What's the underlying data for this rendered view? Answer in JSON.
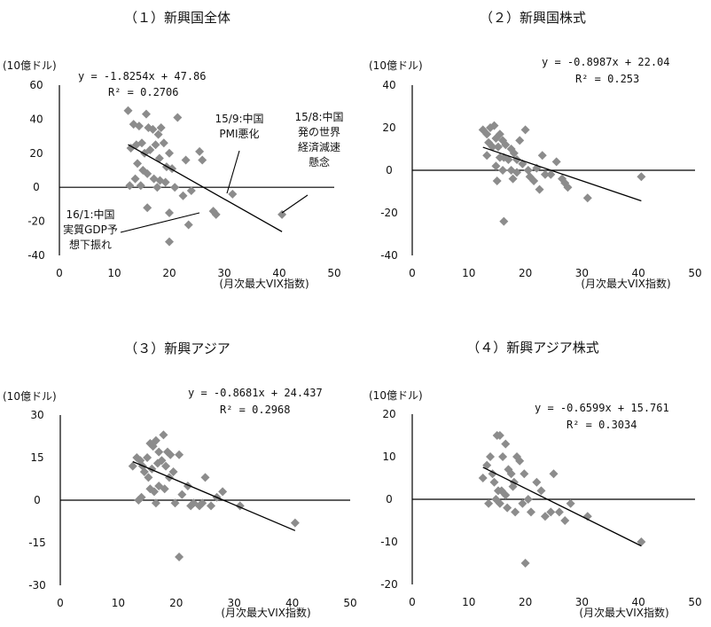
{
  "chart_data": [
    {
      "type": "scatter",
      "title": "（１）新興国全体",
      "unit_label": "(10億ドル)",
      "xlabel": "(月次最大VIX指数)",
      "xlim": [
        0,
        50
      ],
      "ylim": [
        -40,
        60
      ],
      "x_ticks": [
        0,
        10,
        20,
        30,
        40,
        50
      ],
      "y_ticks": [
        -40,
        -20,
        0,
        20,
        40,
        60
      ],
      "trend": {
        "slope": -1.8254,
        "intercept": 47.86,
        "x_range": [
          12.5,
          40.5
        ]
      },
      "equation": "y = -1.8254x + 47.86",
      "r2": "R² = 0.2706",
      "points": [
        [
          12.5,
          45
        ],
        [
          13.5,
          37
        ],
        [
          14.5,
          36
        ],
        [
          15.8,
          43
        ],
        [
          16.2,
          35
        ],
        [
          17.0,
          34
        ],
        [
          18.0,
          31
        ],
        [
          18.5,
          35
        ],
        [
          19.0,
          26
        ],
        [
          20.0,
          20
        ],
        [
          21.5,
          41
        ],
        [
          23.0,
          16
        ],
        [
          25.5,
          21
        ],
        [
          26.0,
          16
        ],
        [
          13.0,
          23
        ],
        [
          14.0,
          25
        ],
        [
          15.0,
          26
        ],
        [
          15.5,
          20
        ],
        [
          16.5,
          22
        ],
        [
          17.5,
          25
        ],
        [
          18.2,
          17
        ],
        [
          19.5,
          12
        ],
        [
          14.2,
          14
        ],
        [
          15.2,
          10
        ],
        [
          16.0,
          8
        ],
        [
          17.2,
          5
        ],
        [
          18.3,
          4
        ],
        [
          19.3,
          3
        ],
        [
          13.8,
          5
        ],
        [
          14.8,
          1
        ],
        [
          17.8,
          0
        ],
        [
          20.5,
          11
        ],
        [
          21.0,
          0
        ],
        [
          22.5,
          -5
        ],
        [
          24.0,
          -2
        ],
        [
          28.0,
          -14
        ],
        [
          28.5,
          -16
        ],
        [
          31.5,
          -4
        ],
        [
          40.5,
          -16
        ],
        [
          16.0,
          -12
        ],
        [
          20.0,
          -15
        ],
        [
          23.5,
          -22
        ],
        [
          20.0,
          -32
        ],
        [
          12.8,
          1
        ]
      ],
      "annotations": [
        {
          "lines": [
            "15/9:中国",
            "PMI悪化"
          ]
        },
        {
          "lines": [
            "15/8:中国",
            "発の世界",
            "経済減速",
            "懸念"
          ]
        },
        {
          "lines": [
            "16/1:中国",
            "実質GDP予",
            "想下振れ"
          ]
        }
      ]
    },
    {
      "type": "scatter",
      "title": "（２）新興国株式",
      "unit_label": "(10億ドル)",
      "xlabel": "(月次最大VIX指数)",
      "xlim": [
        0,
        50
      ],
      "ylim": [
        -40,
        40
      ],
      "x_ticks": [
        0,
        10,
        20,
        30,
        40,
        50
      ],
      "y_ticks": [
        -40,
        -20,
        0,
        20,
        40
      ],
      "trend": {
        "slope": -0.8987,
        "intercept": 22.04,
        "x_range": [
          12.5,
          40.5
        ]
      },
      "equation": "y = -0.8987x + 22.04",
      "r2": "R² = 0.253",
      "points": [
        [
          12.5,
          19
        ],
        [
          13.2,
          17
        ],
        [
          13.8,
          20
        ],
        [
          14.5,
          21
        ],
        [
          14.8,
          15
        ],
        [
          15.5,
          17
        ],
        [
          16.0,
          14
        ],
        [
          13.5,
          13
        ],
        [
          14.2,
          11
        ],
        [
          15.2,
          11
        ],
        [
          16.5,
          12
        ],
        [
          17.5,
          10
        ],
        [
          18.0,
          8
        ],
        [
          19.0,
          14
        ],
        [
          20.0,
          19
        ],
        [
          15.5,
          6
        ],
        [
          16.2,
          6
        ],
        [
          17.0,
          5
        ],
        [
          18.5,
          5
        ],
        [
          19.5,
          3
        ],
        [
          14.8,
          2
        ],
        [
          16.0,
          0
        ],
        [
          17.5,
          0
        ],
        [
          18.5,
          -1
        ],
        [
          20.5,
          0
        ],
        [
          22.0,
          1
        ],
        [
          23.0,
          7
        ],
        [
          24.5,
          -2
        ],
        [
          25.5,
          4
        ],
        [
          26.5,
          -4
        ],
        [
          27.5,
          -8
        ],
        [
          15.0,
          -5
        ],
        [
          22.5,
          -9
        ],
        [
          31.0,
          -13
        ],
        [
          40.5,
          -3
        ],
        [
          16.2,
          -24
        ],
        [
          17.8,
          -4
        ],
        [
          20.8,
          -3
        ],
        [
          21.5,
          -5
        ],
        [
          13.2,
          7
        ],
        [
          27.0,
          -6
        ],
        [
          23.5,
          -2
        ]
      ]
    },
    {
      "type": "scatter",
      "title": "（３）新興アジア",
      "unit_label": "(10億ドル)",
      "xlabel": "(月次最大VIX指数)",
      "xlim": [
        0,
        50
      ],
      "ylim": [
        -30,
        30
      ],
      "x_ticks": [
        0,
        10,
        20,
        30,
        40,
        50
      ],
      "y_ticks": [
        -30,
        -15,
        0,
        15,
        30
      ],
      "trend": {
        "slope": -0.8681,
        "intercept": 24.437,
        "x_range": [
          12.5,
          40.5
        ]
      },
      "equation": "y = -0.8681x + 24.437",
      "r2": "R² = 0.2968",
      "points": [
        [
          12.5,
          12
        ],
        [
          13.2,
          15
        ],
        [
          13.8,
          14
        ],
        [
          14.2,
          12
        ],
        [
          15.0,
          15
        ],
        [
          15.5,
          20
        ],
        [
          16.0,
          19
        ],
        [
          16.5,
          21
        ],
        [
          17.0,
          17
        ],
        [
          17.8,
          23
        ],
        [
          18.5,
          17
        ],
        [
          14.5,
          10
        ],
        [
          15.2,
          8
        ],
        [
          15.8,
          11
        ],
        [
          16.8,
          13
        ],
        [
          17.5,
          14
        ],
        [
          18.2,
          12
        ],
        [
          19.0,
          16
        ],
        [
          14.0,
          1
        ],
        [
          15.5,
          4
        ],
        [
          16.2,
          3
        ],
        [
          17.0,
          5
        ],
        [
          18.0,
          4
        ],
        [
          18.8,
          8
        ],
        [
          19.5,
          10
        ],
        [
          20.5,
          16
        ],
        [
          21.0,
          2
        ],
        [
          22.0,
          5
        ],
        [
          23.0,
          -1
        ],
        [
          24.0,
          -2
        ],
        [
          25.0,
          8
        ],
        [
          26.0,
          -2
        ],
        [
          27.0,
          1
        ],
        [
          28.0,
          3
        ],
        [
          31.0,
          -2
        ],
        [
          40.5,
          -8
        ],
        [
          20.5,
          -20
        ],
        [
          16.5,
          -1
        ],
        [
          19.8,
          -1
        ],
        [
          22.5,
          -2
        ],
        [
          24.5,
          -1
        ],
        [
          13.5,
          0
        ]
      ]
    },
    {
      "type": "scatter",
      "title": "（４）新興アジア株式",
      "unit_label": "(10億ドル)",
      "xlabel": "(月次最大VIX指数)",
      "xlim": [
        0,
        50
      ],
      "ylim": [
        -20,
        20
      ],
      "x_ticks": [
        0,
        10,
        20,
        30,
        40,
        50
      ],
      "y_ticks": [
        -20,
        -10,
        0,
        10,
        20
      ],
      "trend": {
        "slope": -0.6599,
        "intercept": 15.761,
        "x_range": [
          12.5,
          40.5
        ]
      },
      "equation": "y = -0.6599x + 15.761",
      "r2": "R² = 0.3034",
      "points": [
        [
          12.5,
          5
        ],
        [
          13.2,
          8
        ],
        [
          13.8,
          10
        ],
        [
          14.2,
          6
        ],
        [
          15.0,
          15
        ],
        [
          15.5,
          15
        ],
        [
          16.0,
          10
        ],
        [
          16.5,
          13
        ],
        [
          17.0,
          7
        ],
        [
          17.5,
          6
        ],
        [
          18.0,
          4
        ],
        [
          14.5,
          4
        ],
        [
          15.2,
          2
        ],
        [
          15.8,
          2
        ],
        [
          16.5,
          1
        ],
        [
          17.8,
          3
        ],
        [
          18.5,
          10
        ],
        [
          19.0,
          9
        ],
        [
          19.8,
          6
        ],
        [
          20.5,
          0
        ],
        [
          21.0,
          -3
        ],
        [
          22.0,
          4
        ],
        [
          22.8,
          2
        ],
        [
          23.5,
          -4
        ],
        [
          24.5,
          -3
        ],
        [
          25.0,
          6
        ],
        [
          26.0,
          -3
        ],
        [
          27.0,
          -5
        ],
        [
          28.0,
          -1
        ],
        [
          31.0,
          -4
        ],
        [
          40.5,
          -10
        ],
        [
          20.0,
          -15
        ],
        [
          13.5,
          -1
        ],
        [
          15.5,
          -1
        ],
        [
          16.8,
          -2
        ],
        [
          18.2,
          -3
        ],
        [
          19.5,
          -1
        ],
        [
          14.8,
          0
        ]
      ]
    }
  ]
}
